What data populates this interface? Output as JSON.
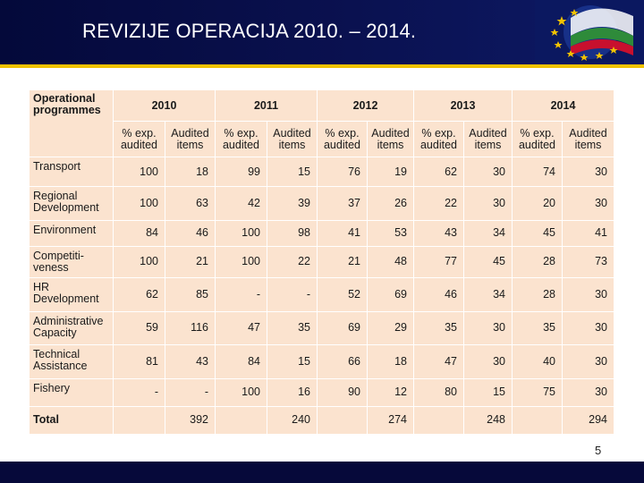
{
  "slide": {
    "title": "REVIZIJE OPERACIJA 2010. – 2014.",
    "page_number": "5",
    "colors": {
      "header_bg": "#04093a",
      "accent_bar": "#f2c200",
      "table_bg": "#fbe3cf"
    }
  },
  "table": {
    "corner_header": "Operational programmes",
    "years": [
      "2010",
      "2011",
      "2012",
      "2013",
      "2014"
    ],
    "subheaders": [
      "% exp. audited",
      "Audited items"
    ],
    "rows": [
      {
        "name": "Transport",
        "values": [
          "100",
          "18",
          "99",
          "15",
          "76",
          "19",
          "62",
          "30",
          "74",
          "30"
        ]
      },
      {
        "name": "Regional Development",
        "values": [
          "100",
          "63",
          "42",
          "39",
          "37",
          "26",
          "22",
          "30",
          "20",
          "30"
        ]
      },
      {
        "name": "Environment",
        "values": [
          "84",
          "46",
          "100",
          "98",
          "41",
          "53",
          "43",
          "34",
          "45",
          "41"
        ]
      },
      {
        "name": "Competiti-veness",
        "values": [
          "100",
          "21",
          "100",
          "22",
          "21",
          "48",
          "77",
          "45",
          "28",
          "73"
        ]
      },
      {
        "name": "HR Development",
        "values": [
          "62",
          "85",
          "-",
          "-",
          "52",
          "69",
          "46",
          "34",
          "28",
          "30"
        ]
      },
      {
        "name": "Administrative Capacity",
        "values": [
          "59",
          "116",
          "47",
          "35",
          "69",
          "29",
          "35",
          "30",
          "35",
          "30"
        ]
      },
      {
        "name": "Technical Assistance",
        "values": [
          "81",
          "43",
          "84",
          "15",
          "66",
          "18",
          "47",
          "30",
          "40",
          "30"
        ]
      },
      {
        "name": "Fishery",
        "values": [
          "-",
          "-",
          "100",
          "16",
          "90",
          "12",
          "80",
          "15",
          "75",
          "30"
        ]
      }
    ],
    "total": {
      "label": "Total",
      "values": [
        "392",
        "240",
        "274",
        "248",
        "294"
      ]
    }
  }
}
